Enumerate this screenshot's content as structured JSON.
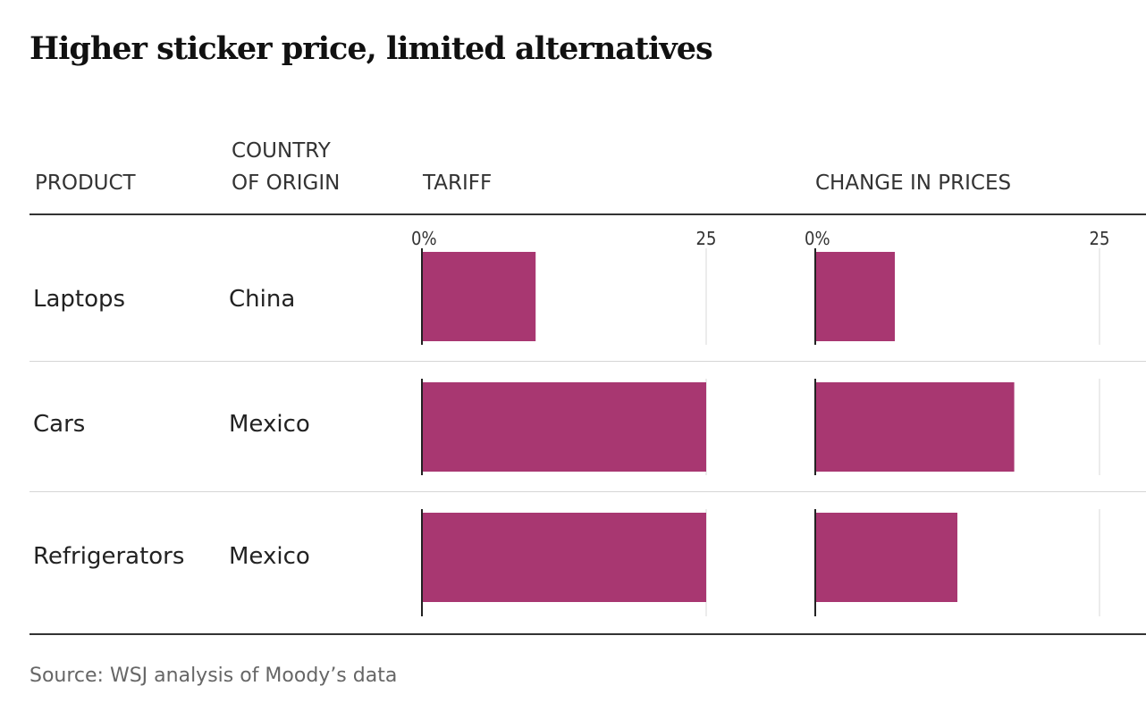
{
  "title": "Higher sticker price, limited alternatives",
  "headers": {
    "product": "PRODUCT",
    "origin_line1": "COUNTRY",
    "origin_line2": "OF ORIGIN",
    "tariff": "TARIFF",
    "change": "CHANGE IN PRICES"
  },
  "source": "Source: WSJ analysis of Moody’s data",
  "bar_color": "#a83771",
  "chart_data": {
    "type": "bar",
    "orientation": "horizontal",
    "categories": [
      "Laptops",
      "Cars",
      "Refrigerators"
    ],
    "origins": [
      "China",
      "Mexico",
      "Mexico"
    ],
    "panels": [
      {
        "name": "TARIFF",
        "values": [
          10,
          25,
          25
        ],
        "xlim": [
          0,
          25
        ],
        "ticks": [
          "0%",
          "25"
        ]
      },
      {
        "name": "CHANGE IN PRICES",
        "values": [
          7,
          17.5,
          12.5
        ],
        "xlim": [
          0,
          25
        ],
        "ticks": [
          "0%",
          "25"
        ]
      }
    ]
  }
}
